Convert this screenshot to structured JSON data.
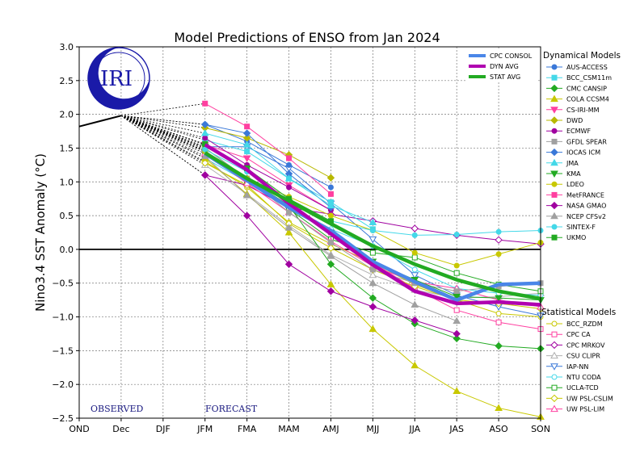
{
  "chart_data": {
    "type": "line",
    "title": "Model Predictions of ENSO from Jan 2024",
    "ylabel": "Nino3.4 SST Anomaly (°C)",
    "xlabel": "",
    "categories": [
      "OND",
      "Dec",
      "DJF",
      "JFM",
      "FMA",
      "MAM",
      "AMJ",
      "MJJ",
      "JJA",
      "JAS",
      "ASO",
      "SON"
    ],
    "yticks": [
      "3.0",
      "2.5",
      "2.0",
      "1.5",
      "1.0",
      "0.5",
      "0.0",
      "−0.5",
      "−1.0",
      "−1.5",
      "−2.0",
      "−2.5"
    ],
    "ylim": [
      -2.5,
      3.0
    ],
    "grid": true,
    "observed": {
      "categories": [
        "OND",
        "Dec"
      ],
      "values": [
        1.82,
        1.98
      ]
    },
    "region_labels": {
      "observed": "OBSERVED",
      "forecast": "FORECAST"
    },
    "logo_text": "IRI",
    "averages": [
      {
        "name": "CPC CONSOL",
        "color": "#4a86e8",
        "values": [
          1.42,
          1.02,
          0.62,
          0.28,
          -0.18,
          -0.48,
          -0.75,
          -0.52,
          -0.5
        ]
      },
      {
        "name": "DYN AVG",
        "color": "#b000b0",
        "values": [
          1.55,
          1.18,
          0.68,
          0.23,
          -0.23,
          -0.62,
          -0.8,
          -0.78,
          -0.82
        ]
      },
      {
        "name": "STAT AVG",
        "color": "#22aa22",
        "values": [
          1.43,
          1.05,
          0.72,
          0.38,
          0.05,
          -0.22,
          -0.45,
          -0.62,
          -0.73
        ]
      }
    ],
    "dynamical_heading": "Dynamical Models",
    "statistical_heading": "Statistical Models",
    "dynamical_models": [
      {
        "name": "AUS-ACCESS",
        "color": "#3a78d8",
        "marker": "circle",
        "values": [
          1.85,
          1.6,
          1.25,
          0.92,
          null,
          null,
          null,
          null,
          null
        ]
      },
      {
        "name": "BCC_CSM11m",
        "color": "#44d8e8",
        "marker": "square",
        "values": [
          1.62,
          1.45,
          1.05,
          0.7,
          0.3,
          null,
          null,
          null,
          null
        ]
      },
      {
        "name": "CMC CANSIP",
        "color": "#22aa22",
        "marker": "diamond",
        "values": [
          1.5,
          1.05,
          0.65,
          -0.22,
          -0.72,
          -1.1,
          -1.32,
          -1.43,
          -1.47
        ]
      },
      {
        "name": "COLA CCSM4",
        "color": "#c8c800",
        "marker": "triangle-up",
        "values": [
          1.35,
          0.82,
          0.25,
          -0.52,
          -1.18,
          -1.72,
          -2.1,
          -2.35,
          -2.48
        ]
      },
      {
        "name": "CS-IRI-MM",
        "color": "#ff3fa0",
        "marker": "triangle-down",
        "values": [
          1.55,
          1.35,
          0.95,
          0.58,
          null,
          null,
          null,
          null,
          null
        ]
      },
      {
        "name": "DWD",
        "color": "#b8b800",
        "marker": "diamond",
        "values": [
          1.8,
          1.65,
          1.4,
          1.06,
          null,
          null,
          null,
          null,
          null
        ]
      },
      {
        "name": "ECMWF",
        "color": "#a000a0",
        "marker": "circle",
        "values": [
          1.65,
          1.25,
          0.92,
          0.58,
          null,
          null,
          null,
          null,
          null
        ]
      },
      {
        "name": "GFDL SPEAR",
        "color": "#a0a0a0",
        "marker": "square",
        "values": [
          1.5,
          1.05,
          0.55,
          0.1,
          -0.3,
          -0.5,
          -0.62,
          -0.55,
          -0.5
        ]
      },
      {
        "name": "IOCAS ICM",
        "color": "#3a78d8",
        "marker": "diamond",
        "values": [
          1.85,
          1.72,
          1.12,
          0.62,
          null,
          null,
          null,
          null,
          null
        ]
      },
      {
        "name": "JMA",
        "color": "#44d8e8",
        "marker": "triangle-up",
        "values": [
          1.72,
          1.55,
          1.05,
          0.65,
          0.4,
          null,
          null,
          null,
          null
        ]
      },
      {
        "name": "KMA",
        "color": "#22aa22",
        "marker": "triangle-down",
        "values": [
          1.52,
          1.2,
          0.7,
          0.25,
          -0.18,
          -0.45,
          -0.7,
          -0.72,
          -0.75
        ]
      },
      {
        "name": "LDEO",
        "color": "#c8c800",
        "marker": "circle",
        "values": [
          1.45,
          1.05,
          0.78,
          0.5,
          0.28,
          -0.05,
          -0.24,
          -0.07,
          0.1
        ]
      },
      {
        "name": "MetFRANCE",
        "color": "#ff3fa0",
        "marker": "square",
        "values": [
          2.16,
          1.82,
          1.35,
          0.82,
          null,
          null,
          null,
          null,
          null
        ]
      },
      {
        "name": "NASA GMAO",
        "color": "#a000a0",
        "marker": "diamond",
        "values": [
          1.1,
          0.5,
          -0.22,
          -0.62,
          -0.85,
          -1.05,
          -1.25,
          null,
          null
        ]
      },
      {
        "name": "NCEP CFSv2",
        "color": "#a0a0a0",
        "marker": "triangle-up",
        "values": [
          1.38,
          0.8,
          0.32,
          -0.1,
          -0.5,
          -0.82,
          -1.06,
          null,
          null
        ]
      },
      {
        "name": "SINTEX-F",
        "color": "#44d8e8",
        "marker": "circle",
        "values": [
          1.48,
          1.15,
          0.68,
          0.42,
          0.28,
          0.21,
          0.22,
          0.26,
          0.28
        ]
      },
      {
        "name": "UKMO",
        "color": "#22aa22",
        "marker": "square",
        "values": [
          1.56,
          1.2,
          0.75,
          0.42,
          null,
          null,
          null,
          null,
          null
        ]
      }
    ],
    "statistical_models": [
      {
        "name": "BCC_RZDM",
        "color": "#c8c800",
        "marker": "circle",
        "values": [
          1.3,
          0.92,
          0.4,
          0.08,
          -0.2,
          -0.52,
          -0.75,
          -0.95,
          -1.0
        ]
      },
      {
        "name": "CPC CA",
        "color": "#ff3fa0",
        "marker": "square",
        "values": [
          1.46,
          1.02,
          0.62,
          0.25,
          -0.2,
          -0.58,
          -0.9,
          -1.08,
          -1.18
        ]
      },
      {
        "name": "CPC MRKOV",
        "color": "#a000a0",
        "marker": "diamond",
        "values": [
          1.1,
          0.95,
          0.62,
          0.52,
          0.42,
          0.31,
          0.21,
          0.14,
          0.08
        ]
      },
      {
        "name": "CSU CLIPR",
        "color": "#b0b0b0",
        "marker": "triangle-up",
        "values": [
          1.25,
          0.82,
          0.35,
          -0.08,
          -0.38,
          -0.6,
          -0.72,
          -0.7,
          -0.65
        ]
      },
      {
        "name": "IAP-NN",
        "color": "#3a78d8",
        "marker": "triangle-down",
        "values": [
          1.52,
          1.52,
          1.2,
          0.68,
          0.15,
          -0.38,
          -0.68,
          -0.85,
          -0.98
        ]
      },
      {
        "name": "NTU CODA",
        "color": "#44d8e8",
        "marker": "circle",
        "values": [
          1.35,
          1.0,
          0.6,
          0.3,
          0.05,
          -0.3,
          -0.58,
          -0.65,
          -0.68
        ]
      },
      {
        "name": "UCLA-TCD",
        "color": "#22aa22",
        "marker": "square",
        "values": [
          1.45,
          1.0,
          0.6,
          0.15,
          -0.05,
          -0.12,
          -0.35,
          -0.52,
          -0.62
        ]
      },
      {
        "name": "UW PSL-CSLIM",
        "color": "#c8c800",
        "marker": "diamond",
        "values": [
          1.28,
          0.95,
          0.38,
          0.02,
          -0.3,
          -0.55,
          -0.75,
          -0.8,
          -0.88
        ]
      },
      {
        "name": "UW PSL-LIM",
        "color": "#ff3fa0",
        "marker": "triangle-up",
        "values": [
          1.42,
          0.98,
          0.55,
          0.12,
          -0.25,
          -0.48,
          -0.58,
          -0.75,
          -0.85
        ]
      }
    ]
  }
}
